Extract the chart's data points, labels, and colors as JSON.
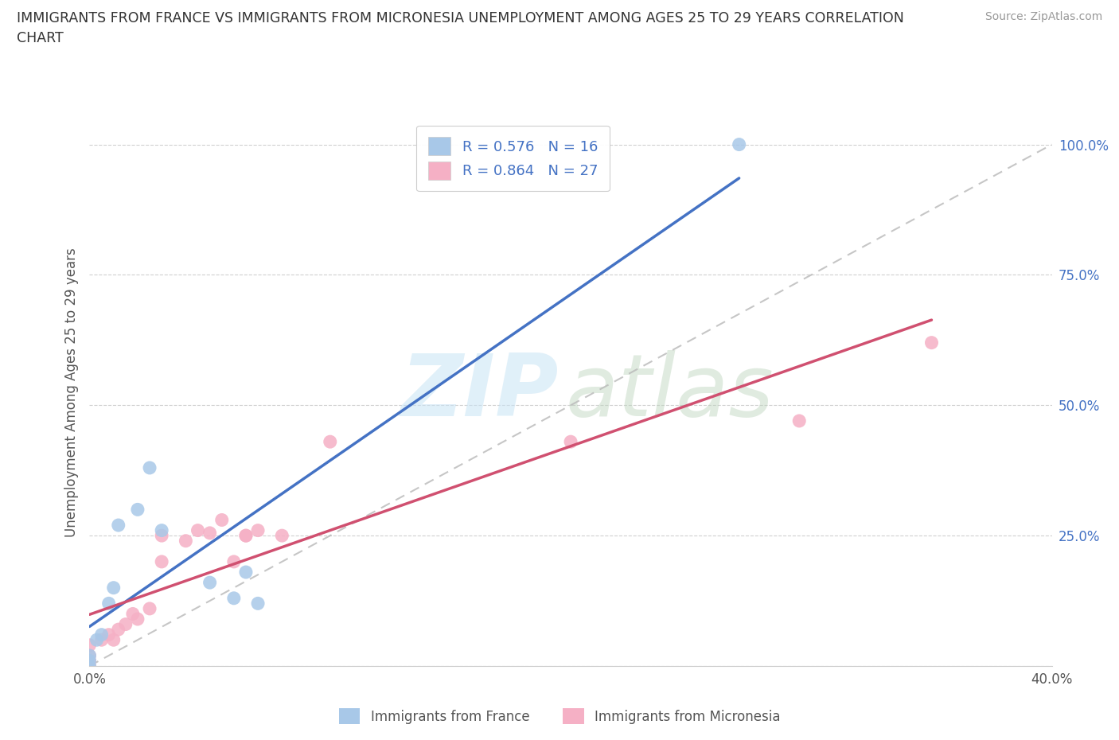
{
  "title_line1": "IMMIGRANTS FROM FRANCE VS IMMIGRANTS FROM MICRONESIA UNEMPLOYMENT AMONG AGES 25 TO 29 YEARS CORRELATION",
  "title_line2": "CHART",
  "source": "Source: ZipAtlas.com",
  "ylabel": "Unemployment Among Ages 25 to 29 years",
  "xlim": [
    0.0,
    0.4
  ],
  "ylim": [
    0.0,
    1.05
  ],
  "R_france": 0.576,
  "N_france": 16,
  "R_micronesia": 0.864,
  "N_micronesia": 27,
  "legend_label_france": "Immigrants from France",
  "legend_label_micronesia": "Immigrants from Micronesia",
  "france_dot_color": "#a8c8e8",
  "micronesia_dot_color": "#f5b0c5",
  "france_line_color": "#4472c4",
  "micronesia_line_color": "#d05070",
  "ref_line_color": "#b8b8b8",
  "background_color": "#ffffff",
  "grid_color": "#d0d0d0",
  "france_x": [
    0.0,
    0.0,
    0.0,
    0.003,
    0.005,
    0.008,
    0.01,
    0.012,
    0.02,
    0.025,
    0.03,
    0.05,
    0.06,
    0.065,
    0.07,
    0.27
  ],
  "france_y": [
    0.0,
    0.01,
    0.02,
    0.05,
    0.06,
    0.12,
    0.15,
    0.27,
    0.3,
    0.38,
    0.26,
    0.16,
    0.13,
    0.18,
    0.12,
    1.0
  ],
  "micronesia_x": [
    0.0,
    0.0,
    0.0,
    0.0,
    0.005,
    0.008,
    0.01,
    0.012,
    0.015,
    0.018,
    0.02,
    0.025,
    0.03,
    0.03,
    0.04,
    0.045,
    0.05,
    0.055,
    0.06,
    0.065,
    0.065,
    0.07,
    0.08,
    0.1,
    0.2,
    0.295,
    0.35
  ],
  "micronesia_y": [
    0.0,
    0.01,
    0.02,
    0.04,
    0.05,
    0.06,
    0.05,
    0.07,
    0.08,
    0.1,
    0.09,
    0.11,
    0.2,
    0.25,
    0.24,
    0.26,
    0.255,
    0.28,
    0.2,
    0.25,
    0.25,
    0.26,
    0.25,
    0.43,
    0.43,
    0.47,
    0.62
  ]
}
